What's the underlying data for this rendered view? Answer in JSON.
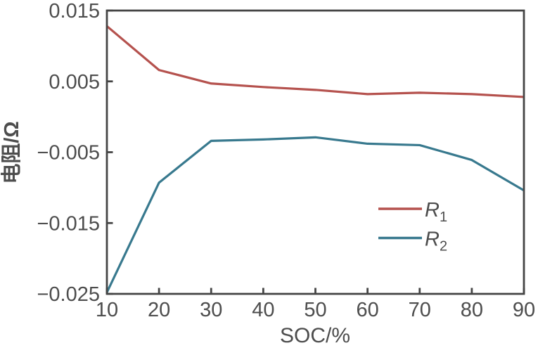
{
  "colors": {
    "background": "#ffffff",
    "axis": "#454545",
    "text": "#4d4d4d",
    "series_r1": "#b5524e",
    "series_r2": "#38798e"
  },
  "chart_data": {
    "type": "line",
    "title": "",
    "xlabel": "SOC/%",
    "ylabel": "电阻/Ω",
    "xlim": [
      10,
      90
    ],
    "ylim": [
      -0.025,
      0.015
    ],
    "grid": false,
    "x_ticks": [
      10,
      20,
      30,
      40,
      50,
      60,
      70,
      80,
      90
    ],
    "x_tick_labels": [
      "10",
      "20",
      "30",
      "40",
      "50",
      "60",
      "70",
      "80",
      "90"
    ],
    "y_ticks": [
      0.015,
      0.005,
      -0.005,
      -0.015,
      -0.025
    ],
    "y_tick_labels": [
      "0.015",
      "0.005",
      "−0.005",
      "−0.015",
      "−0.025"
    ],
    "x": [
      10,
      20,
      30,
      40,
      50,
      60,
      70,
      80,
      90
    ],
    "series": [
      {
        "name": "R",
        "subscript": "1",
        "color": "#b5524e",
        "values": [
          0.0128,
          0.0066,
          0.0047,
          0.0042,
          0.0038,
          0.0032,
          0.0034,
          0.0032,
          0.0028
        ]
      },
      {
        "name": "R",
        "subscript": "2",
        "color": "#38798e",
        "values": [
          -0.0248,
          -0.0093,
          -0.0034,
          -0.0032,
          -0.0029,
          -0.0038,
          -0.004,
          -0.0061,
          -0.0104
        ]
      }
    ],
    "legend_position": "inside-right-middle"
  }
}
